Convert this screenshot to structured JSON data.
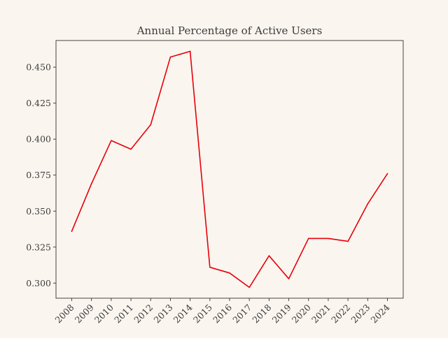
{
  "chart_data": {
    "type": "line",
    "title": "Annual Percentage of Active Users",
    "xlabel": "",
    "ylabel": "",
    "x": [
      "2008",
      "2009",
      "2010",
      "2011",
      "2012",
      "2013",
      "2014",
      "2015",
      "2016",
      "2017",
      "2018",
      "2019",
      "2020",
      "2021",
      "2022",
      "2023",
      "2024"
    ],
    "series": [
      {
        "values": [
          0.336,
          0.369,
          0.399,
          0.393,
          0.41,
          0.457,
          0.461,
          0.311,
          0.307,
          0.297,
          0.319,
          0.303,
          0.331,
          0.331,
          0.329,
          0.355,
          0.376
        ],
        "color": "#e8000b"
      }
    ],
    "yticks": [
      "0.300",
      "0.325",
      "0.350",
      "0.375",
      "0.400",
      "0.425",
      "0.450"
    ],
    "ylim": [
      0.2895,
      0.4685
    ],
    "grid": false,
    "legend": "none"
  }
}
